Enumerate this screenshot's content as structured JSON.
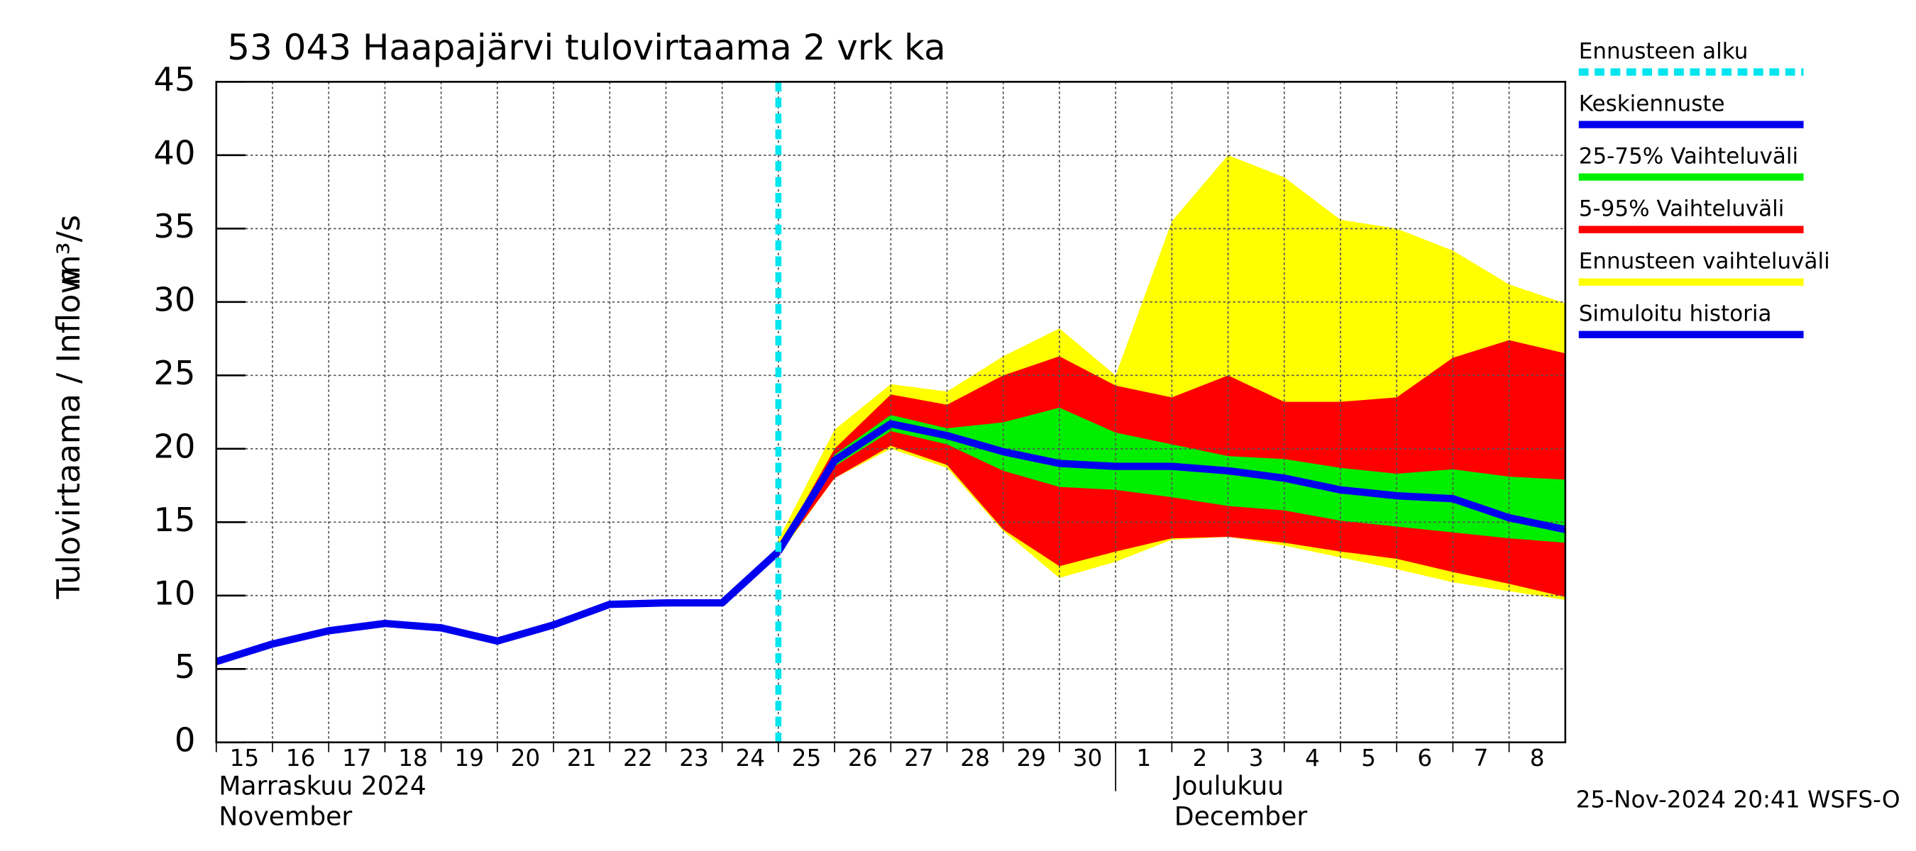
{
  "chart_data": {
    "type": "band-line",
    "title": "53 043 Haapajärvi tulovirtaama 2 vrk ka",
    "ylabel": "Tulovirtaama / Inflow",
    "yunit": "m³/s",
    "x": [
      0,
      1,
      2,
      3,
      4,
      5,
      6,
      7,
      8,
      9,
      10,
      11,
      12,
      13,
      14,
      15,
      16,
      17,
      18,
      19,
      20,
      21,
      22,
      23,
      24
    ],
    "xlim": [
      0,
      24
    ],
    "xticks": [
      {
        "value": 0,
        "label": "15"
      },
      {
        "value": 1,
        "label": "16"
      },
      {
        "value": 2,
        "label": "17"
      },
      {
        "value": 3,
        "label": "18"
      },
      {
        "value": 4,
        "label": "19"
      },
      {
        "value": 5,
        "label": "20"
      },
      {
        "value": 6,
        "label": "21"
      },
      {
        "value": 7,
        "label": "22"
      },
      {
        "value": 8,
        "label": "23"
      },
      {
        "value": 9,
        "label": "24"
      },
      {
        "value": 10,
        "label": "25"
      },
      {
        "value": 11,
        "label": "26"
      },
      {
        "value": 12,
        "label": "27"
      },
      {
        "value": 13,
        "label": "28"
      },
      {
        "value": 14,
        "label": "29"
      },
      {
        "value": 15,
        "label": "30"
      },
      {
        "value": 16,
        "label": "1"
      },
      {
        "value": 17,
        "label": "2"
      },
      {
        "value": 18,
        "label": "3"
      },
      {
        "value": 19,
        "label": "4"
      },
      {
        "value": 20,
        "label": "5"
      },
      {
        "value": 21,
        "label": "6"
      },
      {
        "value": 22,
        "label": "7"
      },
      {
        "value": 23,
        "label": "8"
      }
    ],
    "ylim": [
      0,
      45
    ],
    "yticks": [
      0,
      5,
      10,
      15,
      20,
      25,
      30,
      35,
      40,
      45
    ],
    "grid": true,
    "months": [
      {
        "x": 0,
        "label": "Marraskuu 2024",
        "label2": "November"
      },
      {
        "x": 17,
        "label": "Joulukuu",
        "label2": "December"
      }
    ],
    "month_separator": 16,
    "forecast_start": {
      "name": "Ennusteen alku",
      "x": 10,
      "color": "#00e5ee"
    },
    "bands": [
      {
        "name": "Ennusteen vaihteluväli",
        "color": "#ffff00",
        "low": [
          null,
          null,
          null,
          null,
          null,
          null,
          null,
          null,
          null,
          null,
          12.7,
          18.0,
          20.0,
          18.7,
          14.4,
          11.2,
          12.3,
          13.8,
          14.0,
          13.4,
          12.6,
          11.8,
          10.9,
          10.3,
          9.7
        ],
        "high": [
          null,
          null,
          null,
          null,
          null,
          null,
          null,
          null,
          null,
          null,
          13.8,
          21.3,
          24.4,
          23.9,
          26.3,
          28.2,
          25.0,
          35.5,
          40.0,
          38.5,
          35.6,
          35.0,
          33.5,
          31.2,
          29.9
        ]
      },
      {
        "name": "5-95% Vaihteluväli",
        "color": "#ff0000",
        "low": [
          null,
          null,
          null,
          null,
          null,
          null,
          null,
          null,
          null,
          null,
          12.8,
          18.0,
          20.2,
          18.9,
          14.5,
          12.0,
          13.0,
          13.9,
          14.0,
          13.6,
          13.0,
          12.5,
          11.6,
          10.8,
          9.9
        ],
        "high": [
          null,
          null,
          null,
          null,
          null,
          null,
          null,
          null,
          null,
          null,
          13.2,
          20.0,
          23.7,
          23.0,
          25.0,
          26.3,
          24.3,
          23.5,
          25.0,
          23.2,
          23.2,
          23.5,
          26.2,
          27.4,
          26.5
        ]
      },
      {
        "name": "25-75% Vaihteluväli",
        "color": "#00ee00",
        "low": [
          null,
          null,
          null,
          null,
          null,
          null,
          null,
          null,
          null,
          null,
          13.0,
          18.8,
          21.2,
          20.3,
          18.5,
          17.4,
          17.2,
          16.7,
          16.1,
          15.8,
          15.1,
          14.7,
          14.3,
          13.9,
          13.6
        ],
        "high": [
          null,
          null,
          null,
          null,
          null,
          null,
          null,
          null,
          null,
          null,
          13.0,
          19.6,
          22.3,
          21.4,
          21.8,
          22.8,
          21.1,
          20.3,
          19.5,
          19.3,
          18.7,
          18.3,
          18.6,
          18.1,
          17.9
        ]
      }
    ],
    "series": [
      {
        "name": "Keskiennuste",
        "color": "#0000ee",
        "values": [
          null,
          null,
          null,
          null,
          null,
          null,
          null,
          null,
          null,
          null,
          13.0,
          19.2,
          21.7,
          20.9,
          19.8,
          19.0,
          18.8,
          18.8,
          18.5,
          18.0,
          17.2,
          16.8,
          16.6,
          15.3,
          14.5
        ]
      },
      {
        "name": "Simuloitu historia",
        "color": "#0000ee",
        "values": [
          5.5,
          6.7,
          7.6,
          8.1,
          7.8,
          6.9,
          8.0,
          9.4,
          9.5,
          9.5,
          13.0,
          null,
          null,
          null,
          null,
          null,
          null,
          null,
          null,
          null,
          null,
          null,
          null,
          null,
          null
        ]
      }
    ],
    "timestamp": "25-Nov-2024 20:41 WSFS-O"
  }
}
